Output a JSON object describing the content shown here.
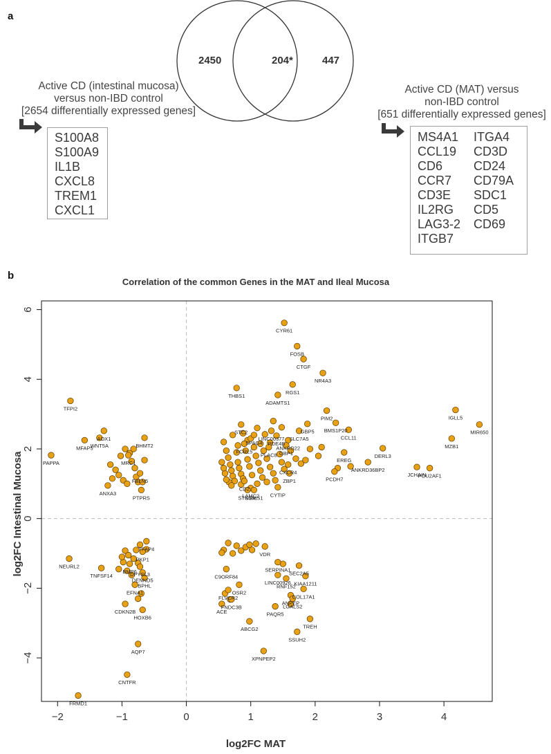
{
  "panel_a": {
    "letter": "a",
    "venn": {
      "left_only": "2450",
      "overlap": "204*",
      "right_only": "447"
    },
    "left_caption": [
      "Active CD (intestinal mucosa)",
      "versus non-IBD control",
      "[2654 differentially expressed genes]"
    ],
    "right_caption": [
      "Active CD (MAT) versus",
      "non-IBD control",
      "[651 differentially expressed genes]"
    ],
    "left_genes": [
      "S100A8",
      "S100A9",
      "IL1B",
      "CXCL8",
      "TREM1",
      "CXCL1"
    ],
    "right_genes_col1": [
      "MS4A1",
      "CCL19",
      "CD6",
      "CCR7",
      "CD3E",
      "IL2RG",
      "LAG3-2",
      "ITGB7"
    ],
    "right_genes_col2": [
      "ITGA4",
      "CD3D",
      "CD24",
      "CD79A",
      "SDC1",
      "CD5",
      "CD69"
    ]
  },
  "panel_b": {
    "letter": "b"
  },
  "colors": {
    "point_fill": "#e8a015",
    "point_edge": "#5a3a00",
    "axis": "#111111",
    "guide": "#bbbbbb",
    "arrow": "#3a3a3a"
  },
  "chart_data": {
    "type": "scatter",
    "title": "Correlation of the common Genes in the MAT and Ileal Mucosa",
    "xlabel": "log2FC MAT",
    "ylabel": "log2FC Intestinal Mucosa",
    "xlim": [
      -2.25,
      4.75
    ],
    "ylim": [
      -5.25,
      6.25
    ],
    "xticks": [
      -2,
      -1,
      0,
      1,
      2,
      3,
      4
    ],
    "yticks": [
      -4,
      -2,
      0,
      2,
      4,
      6
    ],
    "grid": false,
    "reference_lines": {
      "x": 0,
      "y": 0
    },
    "labeled_points": [
      {
        "label": "CYR61",
        "x": 1.52,
        "y": 5.62
      },
      {
        "label": "FOSB",
        "x": 1.72,
        "y": 4.95
      },
      {
        "label": "CTGF",
        "x": 1.82,
        "y": 4.58
      },
      {
        "label": "NR4A3",
        "x": 2.12,
        "y": 4.18
      },
      {
        "label": "RGS1",
        "x": 1.65,
        "y": 3.85
      },
      {
        "label": "THBS1",
        "x": 0.78,
        "y": 3.75
      },
      {
        "label": "ADAMTS1",
        "x": 1.42,
        "y": 3.55
      },
      {
        "label": "IGLL5",
        "x": 4.18,
        "y": 3.12
      },
      {
        "label": "MIR650",
        "x": 4.55,
        "y": 2.7
      },
      {
        "label": "MZB1",
        "x": 4.12,
        "y": 2.3
      },
      {
        "label": "PIM2",
        "x": 2.18,
        "y": 3.1
      },
      {
        "label": "BMS1P20",
        "x": 2.32,
        "y": 2.75
      },
      {
        "label": "CCL11",
        "x": 2.52,
        "y": 2.55
      },
      {
        "label": "GBP5",
        "x": 1.88,
        "y": 2.72
      },
      {
        "label": "SLC7A5",
        "x": 1.75,
        "y": 2.52
      },
      {
        "label": "STC2",
        "x": 0.85,
        "y": 2.7
      },
      {
        "label": "LINC00377",
        "x": 1.32,
        "y": 2.52
      },
      {
        "label": "SPAG4",
        "x": 1.05,
        "y": 2.4
      },
      {
        "label": "PDE4B",
        "x": 1.4,
        "y": 2.38
      },
      {
        "label": "ANKRD22",
        "x": 1.58,
        "y": 2.25
      },
      {
        "label": "FCRL5",
        "x": 0.9,
        "y": 2.15
      },
      {
        "label": "PLAC8",
        "x": 1.28,
        "y": 2.05
      },
      {
        "label": "GBP1",
        "x": 1.55,
        "y": 2.1
      },
      {
        "label": "EREG",
        "x": 2.45,
        "y": 1.9
      },
      {
        "label": "DERL3",
        "x": 3.05,
        "y": 2.02
      },
      {
        "label": "JCHAIN",
        "x": 3.58,
        "y": 1.48
      },
      {
        "label": "POU2AF1",
        "x": 3.78,
        "y": 1.45
      },
      {
        "label": "ANKRD36BP2",
        "x": 2.82,
        "y": 1.62
      },
      {
        "label": "PCDH7",
        "x": 2.3,
        "y": 1.35
      },
      {
        "label": "CXCR4",
        "x": 1.58,
        "y": 1.55
      },
      {
        "label": "ZBP1",
        "x": 1.6,
        "y": 1.3
      },
      {
        "label": "CD2",
        "x": 0.9,
        "y": 1.08
      },
      {
        "label": "LAMC2",
        "x": 1.0,
        "y": 0.88
      },
      {
        "label": "SGMS1",
        "x": 1.05,
        "y": 0.82
      },
      {
        "label": "STK38L",
        "x": 0.95,
        "y": 0.82
      },
      {
        "label": "CYTIP",
        "x": 1.42,
        "y": 0.9
      },
      {
        "label": "TFPI2",
        "x": -1.8,
        "y": 3.38
      },
      {
        "label": "AOX1",
        "x": -1.28,
        "y": 2.52
      },
      {
        "label": "WNT5A",
        "x": -1.35,
        "y": 2.32
      },
      {
        "label": "MFAP5",
        "x": -1.58,
        "y": 2.25
      },
      {
        "label": "PAPPA",
        "x": -2.1,
        "y": 1.82
      },
      {
        "label": "BHMT2",
        "x": -0.65,
        "y": 2.32
      },
      {
        "label": "MRC1",
        "x": -0.9,
        "y": 1.82
      },
      {
        "label": "FBLN5",
        "x": -0.72,
        "y": 1.3
      },
      {
        "label": "ANXA3",
        "x": -1.22,
        "y": 0.95
      },
      {
        "label": "PTPRS",
        "x": -0.7,
        "y": 0.82
      },
      {
        "label": "TFAP4",
        "x": -0.62,
        "y": -0.65
      },
      {
        "label": "PKP1",
        "x": -0.68,
        "y": -0.95
      },
      {
        "label": "NEURL2",
        "x": -1.82,
        "y": -1.15
      },
      {
        "label": "BMP6",
        "x": -0.88,
        "y": -1.3
      },
      {
        "label": "TNFSF14",
        "x": -1.32,
        "y": -1.42
      },
      {
        "label": "DPYSL3",
        "x": -0.72,
        "y": -1.38
      },
      {
        "label": "DENND5",
        "x": -0.68,
        "y": -1.55
      },
      {
        "label": "BPHL",
        "x": -0.65,
        "y": -1.7
      },
      {
        "label": "EFNA1",
        "x": -0.8,
        "y": -1.9
      },
      {
        "label": "CDKN2B",
        "x": -0.95,
        "y": -2.45
      },
      {
        "label": "HOXB6",
        "x": -0.68,
        "y": -2.62
      },
      {
        "label": "AQP7",
        "x": -0.75,
        "y": -3.6
      },
      {
        "label": "CNTFR",
        "x": -0.92,
        "y": -4.48
      },
      {
        "label": "FRMD1",
        "x": -1.68,
        "y": -5.08
      },
      {
        "label": "VDR",
        "x": 1.22,
        "y": -0.8
      },
      {
        "label": "SERPINA1",
        "x": 1.42,
        "y": -1.25
      },
      {
        "label": "SEC2A5",
        "x": 1.75,
        "y": -1.35
      },
      {
        "label": "C9ORF84",
        "x": 0.62,
        "y": -1.45
      },
      {
        "label": "LINC00926",
        "x": 1.42,
        "y": -1.62
      },
      {
        "label": "KIAA1211",
        "x": 1.85,
        "y": -1.65
      },
      {
        "label": "RNF152",
        "x": 1.55,
        "y": -1.72
      },
      {
        "label": "OSR2",
        "x": 0.82,
        "y": -1.9
      },
      {
        "label": "COL17A1",
        "x": 1.82,
        "y": -2.02
      },
      {
        "label": "FLVCR2",
        "x": 0.65,
        "y": -2.05
      },
      {
        "label": "ANPEP",
        "x": 1.62,
        "y": -2.2
      },
      {
        "label": "FNDC3B",
        "x": 0.7,
        "y": -2.32
      },
      {
        "label": "LGALS2",
        "x": 1.65,
        "y": -2.3
      },
      {
        "label": "ACE",
        "x": 0.55,
        "y": -2.45
      },
      {
        "label": "PAQR5",
        "x": 1.38,
        "y": -2.52
      },
      {
        "label": "TREH",
        "x": 1.92,
        "y": -2.88
      },
      {
        "label": "ABCG2",
        "x": 0.98,
        "y": -2.95
      },
      {
        "label": "SSUH2",
        "x": 1.72,
        "y": -3.25
      },
      {
        "label": "XPNPEP2",
        "x": 1.2,
        "y": -3.8
      }
    ],
    "unlabeled_points": [
      {
        "x": 0.58,
        "y": 2.2
      },
      {
        "x": 0.62,
        "y": 1.95
      },
      {
        "x": 0.65,
        "y": 1.75
      },
      {
        "x": 0.68,
        "y": 1.55
      },
      {
        "x": 0.7,
        "y": 1.38
      },
      {
        "x": 0.72,
        "y": 1.22
      },
      {
        "x": 0.75,
        "y": 1.08
      },
      {
        "x": 0.6,
        "y": 1.3
      },
      {
        "x": 0.66,
        "y": 1.05
      },
      {
        "x": 0.78,
        "y": 1.9
      },
      {
        "x": 0.8,
        "y": 1.62
      },
      {
        "x": 0.82,
        "y": 1.45
      },
      {
        "x": 0.85,
        "y": 1.28
      },
      {
        "x": 0.88,
        "y": 1.15
      },
      {
        "x": 0.92,
        "y": 1.95
      },
      {
        "x": 0.95,
        "y": 1.7
      },
      {
        "x": 0.98,
        "y": 1.5
      },
      {
        "x": 1.02,
        "y": 1.25
      },
      {
        "x": 1.05,
        "y": 2.05
      },
      {
        "x": 1.08,
        "y": 1.8
      },
      {
        "x": 1.12,
        "y": 1.6
      },
      {
        "x": 1.15,
        "y": 1.38
      },
      {
        "x": 1.18,
        "y": 1.18
      },
      {
        "x": 1.2,
        "y": 1.95
      },
      {
        "x": 1.25,
        "y": 1.72
      },
      {
        "x": 1.3,
        "y": 1.48
      },
      {
        "x": 1.35,
        "y": 1.3
      },
      {
        "x": 1.38,
        "y": 1.1
      },
      {
        "x": 1.45,
        "y": 1.85
      },
      {
        "x": 1.48,
        "y": 1.62
      },
      {
        "x": 1.52,
        "y": 1.42
      },
      {
        "x": 1.62,
        "y": 1.95
      },
      {
        "x": 1.7,
        "y": 1.72
      },
      {
        "x": 1.78,
        "y": 1.58
      },
      {
        "x": 1.92,
        "y": 2.0
      },
      {
        "x": 2.05,
        "y": 1.8
      },
      {
        "x": 2.1,
        "y": 2.05
      },
      {
        "x": 0.88,
        "y": 2.45
      },
      {
        "x": 0.95,
        "y": 2.25
      },
      {
        "x": 1.1,
        "y": 2.6
      },
      {
        "x": 1.22,
        "y": 2.42
      },
      {
        "x": 1.35,
        "y": 2.8
      },
      {
        "x": 1.48,
        "y": 2.62
      },
      {
        "x": 0.72,
        "y": 2.4
      },
      {
        "x": 0.62,
        "y": 1.12
      },
      {
        "x": 0.7,
        "y": 0.95
      },
      {
        "x": 0.85,
        "y": 0.98
      },
      {
        "x": 1.1,
        "y": 1.0
      },
      {
        "x": 1.25,
        "y": 1.05
      },
      {
        "x": 0.55,
        "y": 1.62
      },
      {
        "x": 0.58,
        "y": 1.45
      },
      {
        "x": 1.0,
        "y": 2.3
      },
      {
        "x": 1.15,
        "y": 2.15
      },
      {
        "x": 1.3,
        "y": 2.18
      },
      {
        "x": 0.8,
        "y": 2.1
      },
      {
        "x": 2.35,
        "y": 1.45
      },
      {
        "x": 2.55,
        "y": 1.5
      },
      {
        "x": 1.85,
        "y": 1.68
      },
      {
        "x": -1.18,
        "y": 1.55
      },
      {
        "x": -1.1,
        "y": 1.4
      },
      {
        "x": -1.05,
        "y": 1.25
      },
      {
        "x": -0.98,
        "y": 1.1
      },
      {
        "x": -0.92,
        "y": 1.0
      },
      {
        "x": -0.85,
        "y": 1.65
      },
      {
        "x": -0.8,
        "y": 1.45
      },
      {
        "x": -0.78,
        "y": 1.2
      },
      {
        "x": -0.75,
        "y": 1.05
      },
      {
        "x": -0.95,
        "y": 2.0
      },
      {
        "x": -0.88,
        "y": 1.88
      },
      {
        "x": -1.02,
        "y": 1.8
      },
      {
        "x": -0.65,
        "y": 1.68
      },
      {
        "x": -0.68,
        "y": 1.05
      },
      {
        "x": -1.15,
        "y": 1.15
      },
      {
        "x": -0.82,
        "y": 2.0
      },
      {
        "x": -0.95,
        "y": -0.92
      },
      {
        "x": -0.9,
        "y": -1.05
      },
      {
        "x": -0.82,
        "y": -1.15
      },
      {
        "x": -0.78,
        "y": -0.9
      },
      {
        "x": -0.72,
        "y": -0.75
      },
      {
        "x": -1.05,
        "y": -1.45
      },
      {
        "x": -0.98,
        "y": -1.25
      },
      {
        "x": -0.92,
        "y": -1.5
      },
      {
        "x": -0.85,
        "y": -1.62
      },
      {
        "x": -0.75,
        "y": -1.28
      },
      {
        "x": -0.7,
        "y": -2.15
      },
      {
        "x": -0.75,
        "y": -2.3
      },
      {
        "x": -0.62,
        "y": -0.88
      },
      {
        "x": -1.0,
        "y": -1.1
      },
      {
        "x": 0.58,
        "y": -0.9
      },
      {
        "x": 0.65,
        "y": -0.7
      },
      {
        "x": 0.72,
        "y": -1.0
      },
      {
        "x": 0.78,
        "y": -0.78
      },
      {
        "x": 0.85,
        "y": -0.92
      },
      {
        "x": 0.92,
        "y": -0.82
      },
      {
        "x": 0.98,
        "y": -0.75
      },
      {
        "x": 1.02,
        "y": -0.9
      },
      {
        "x": 1.08,
        "y": -0.72
      },
      {
        "x": 0.55,
        "y": -0.98
      },
      {
        "x": 0.68,
        "y": -2.32
      },
      {
        "x": 0.6,
        "y": -2.15
      },
      {
        "x": 1.5,
        "y": -1.3
      },
      {
        "x": 1.62,
        "y": -2.45
      }
    ]
  }
}
